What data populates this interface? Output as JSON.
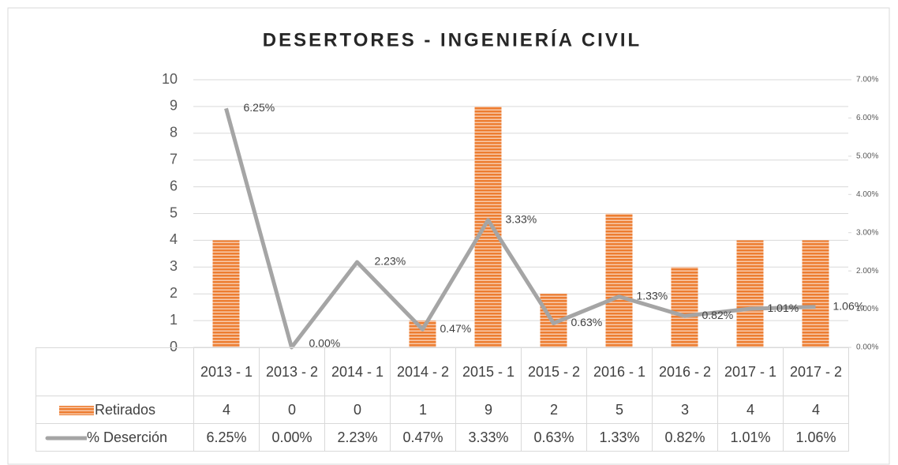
{
  "chart_data": {
    "type": "bar_line",
    "title": "DESERTORES - INGENIERÍA CIVIL",
    "categories": [
      "2013 - 1",
      "2013 - 2",
      "2014 - 1",
      "2014 - 2",
      "2015 - 1",
      "2015 - 2",
      "2016 - 1",
      "2016 - 2",
      "2017 - 1",
      "2017 - 2"
    ],
    "series": [
      {
        "name": "Retirados",
        "type": "bar",
        "color": "#ed7d31",
        "values": [
          4,
          0,
          0,
          1,
          9,
          2,
          5,
          3,
          4,
          4
        ]
      },
      {
        "name": "% Deserción",
        "type": "line",
        "axis": "y2",
        "color": "#a5a5a5",
        "values": [
          6.25,
          0,
          2.23,
          0.47,
          3.33,
          0.63,
          1.33,
          0.82,
          1.01,
          1.06
        ],
        "value_labels": [
          "6.25%",
          "0.00%",
          "2.23%",
          "0.47%",
          "3.33%",
          "0.63%",
          "1.33%",
          "0.82%",
          "1.01%",
          "1.06%"
        ]
      }
    ],
    "ylim": [
      0,
      10
    ],
    "yticks": [
      0,
      1,
      2,
      3,
      4,
      5,
      6,
      7,
      8,
      9,
      10
    ],
    "y2lim": [
      0,
      7
    ],
    "y2ticks": [
      {
        "value": 0,
        "label": "0.00%"
      },
      {
        "value": 1,
        "label": "1.00%"
      },
      {
        "value": 2,
        "label": "2.00%"
      },
      {
        "value": 3,
        "label": "3.00%"
      },
      {
        "value": 4,
        "label": "4.00%"
      },
      {
        "value": 5,
        "label": "5.00%"
      },
      {
        "value": 6,
        "label": "6.00%"
      },
      {
        "value": 7,
        "label": "7.00%"
      }
    ],
    "grid": true,
    "data_table": true
  }
}
